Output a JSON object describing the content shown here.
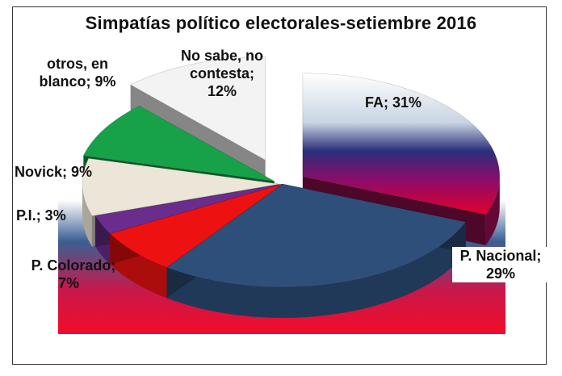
{
  "chart_data": {
    "type": "pie",
    "title": "Simpatías político electorales-setiembre 2016",
    "three_d": true,
    "exploded": true,
    "slices": [
      {
        "label": "FA; 31%",
        "name": "FA",
        "value": 31,
        "color": "#8b0d4a"
      },
      {
        "label": "P. Nacional; 29%",
        "name": "P. Nacional",
        "value": 29,
        "color": "#2e4f7a"
      },
      {
        "label": "P. Colorado; 7%",
        "name": "P. Colorado",
        "value": 7,
        "color": "#ee1111"
      },
      {
        "label": "P.I.; 3%",
        "name": "P.I.",
        "value": 3,
        "color": "#6a2d8e"
      },
      {
        "label": "Novick; 9%",
        "name": "Novick",
        "value": 9,
        "color": "#ece6d8"
      },
      {
        "label": "otros, en blanco; 9%",
        "name": "otros, en blanco",
        "value": 9,
        "color": "#17a24a"
      },
      {
        "label": "No sabe, no contesta; 12%",
        "name": "No sabe, no contesta",
        "value": 12,
        "color": "#f3f3f3"
      }
    ],
    "label_lines": {
      "FA": "FA; 31%",
      "P. Nacional": [
        "P. Nacional;",
        "29%"
      ],
      "P. Colorado": [
        "P. Colorado;",
        "7%"
      ],
      "P.I.": "P.I.; 3%",
      "Novick": "Novick; 9%",
      "otros, en blanco": [
        "otros, en",
        "blanco; 9%"
      ],
      "No sabe, no contesta": [
        "No sabe, no",
        "contesta;",
        "12%"
      ]
    }
  }
}
